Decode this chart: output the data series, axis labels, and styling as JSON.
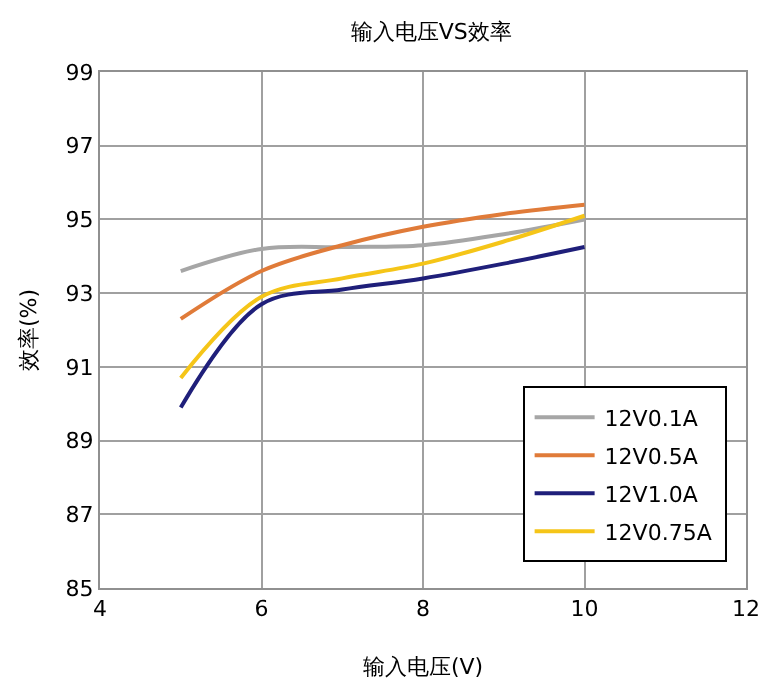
{
  "chart_data": {
    "type": "line",
    "title": "输入电压VS效率",
    "xlabel": "输入电压(V)",
    "ylabel": "效率(%)",
    "x": [
      5,
      6,
      7,
      8,
      9,
      10
    ],
    "series": [
      {
        "name": "12V0.1A",
        "color": "#a6a6a6",
        "values": [
          93.6,
          94.2,
          94.25,
          94.3,
          94.6,
          95.0
        ]
      },
      {
        "name": "12V0.5A",
        "color": "#e07b39",
        "values": [
          92.3,
          93.6,
          94.3,
          94.8,
          95.15,
          95.4
        ]
      },
      {
        "name": "12V1.0A",
        "color": "#1f1f7a",
        "values": [
          89.9,
          92.7,
          93.1,
          93.4,
          93.8,
          94.25
        ]
      },
      {
        "name": "12V0.75A",
        "color": "#f5c518",
        "values": [
          90.7,
          92.9,
          93.4,
          93.8,
          94.4,
          95.1
        ]
      }
    ],
    "xlim": [
      4,
      12
    ],
    "xticks": [
      4,
      6,
      8,
      10,
      12
    ],
    "ylim": [
      85,
      99
    ],
    "yticks": [
      85,
      87,
      89,
      91,
      93,
      95,
      97,
      99
    ],
    "grid": true,
    "legend": "bottom right",
    "marker": "none",
    "line_style": "solid"
  }
}
